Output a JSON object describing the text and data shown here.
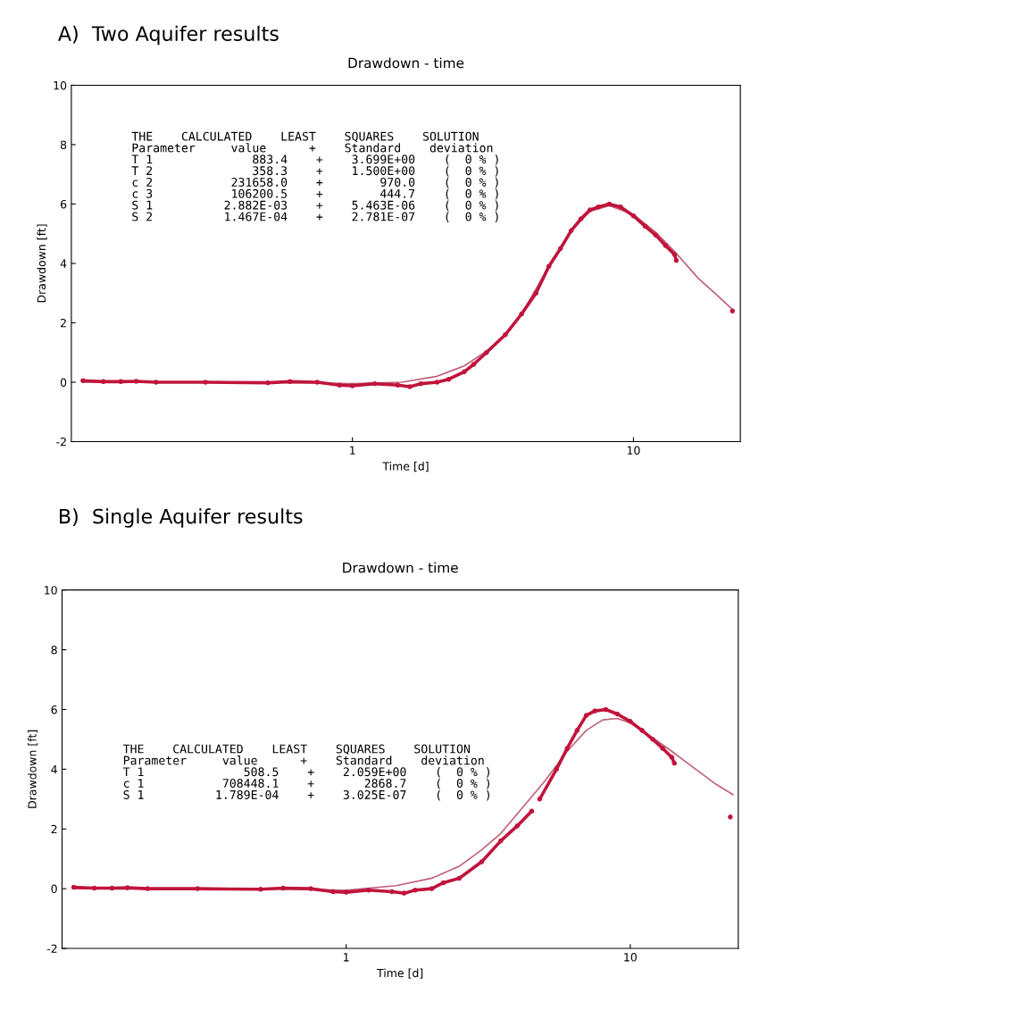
{
  "chart_data": [
    {
      "type": "line",
      "title": "A)  Two Aquifer results",
      "subtitle": "Drawdown - time",
      "xlabel": "Time [d]",
      "ylabel": "Drawdown [ft]",
      "log": "x",
      "grid": false,
      "xlim": [
        0.1,
        24
      ],
      "xticks": [
        1,
        10
      ],
      "ylim": [
        -2,
        10
      ],
      "yticks": [
        -2,
        0,
        2,
        4,
        6,
        8,
        10
      ],
      "annotations": [
        "THE    CALCULATED    LEAST    SQUARES    SOLUTION\nParameter     value      +    Standard    deviation\nT 1              883.4    +    3.699E+00    (  0 % )\nT 2              358.3    +    1.500E+00    (  0 % )\nc 2           231658.0    +        970.0    (  0 % )\nc 3           106200.5    +        444.7    (  0 % )\nS 1          2.882E-03    +    5.463E-06    (  0 % )\nS 2          1.467E-04    +    2.781E-07    (  0 % )"
      ],
      "series": [
        {
          "color": "#c0607a",
          "line_style": "solid",
          "marker": "none",
          "x": [
            0.11,
            0.5,
            1.0,
            1.5,
            2.0,
            2.5,
            3.0,
            3.5,
            4.0,
            5.0,
            6.0,
            7.0,
            8.2,
            10,
            12,
            14,
            17,
            20,
            22.5
          ],
          "values": [
            0,
            0,
            -0.05,
            0.0,
            0.2,
            0.55,
            1.05,
            1.6,
            2.3,
            3.9,
            5.1,
            5.75,
            5.95,
            5.65,
            5.05,
            4.4,
            3.5,
            2.9,
            2.45
          ]
        },
        {
          "color": "#c0143c",
          "line_style": "solid",
          "marker": "circle",
          "x": [
            0.11,
            0.13,
            0.15,
            0.17,
            0.2,
            0.3,
            0.5,
            0.6,
            0.75,
            0.9,
            1.0,
            1.2,
            1.45,
            1.6,
            1.75,
            2.0,
            2.2,
            2.5,
            2.7,
            3.0,
            3.5,
            4.0,
            4.5,
            5.0,
            5.5,
            6.0,
            6.5,
            7.0,
            7.5,
            8.2,
            9.0,
            10,
            11,
            12,
            13,
            14,
            14.2,
            18,
            22.5
          ],
          "values": [
            0.05,
            0.02,
            0.02,
            0.03,
            0.0,
            0.0,
            -0.02,
            0.02,
            0.0,
            -0.1,
            -0.12,
            -0.05,
            -0.1,
            -0.15,
            -0.05,
            0.0,
            0.1,
            0.35,
            0.6,
            1.0,
            1.6,
            2.3,
            3.0,
            3.9,
            4.5,
            5.1,
            5.5,
            5.8,
            5.9,
            6.0,
            5.9,
            5.6,
            5.25,
            4.95,
            4.6,
            4.3,
            4.1,
            null,
            2.4
          ]
        }
      ]
    },
    {
      "type": "line",
      "title": "B)  Single Aquifer results",
      "subtitle": "Drawdown - time",
      "xlabel": "Time [d]",
      "ylabel": "Drawdown [ft]",
      "log": "x",
      "grid": false,
      "xlim": [
        0.1,
        24
      ],
      "xticks": [
        1,
        10
      ],
      "ylim": [
        -2,
        10
      ],
      "yticks": [
        -2,
        0,
        2,
        4,
        6,
        8,
        10
      ],
      "annotations": [
        "THE    CALCULATED    LEAST    SQUARES    SOLUTION\nParameter     value      +    Standard    deviation\nT 1              508.5    +    2.059E+00    (  0 % )\nc 1           708448.1    +       2868.7    (  0 % )\nS 1          1.789E-04    +    3.025E-07    (  0 % )"
      ],
      "series": [
        {
          "color": "#c0607a",
          "line_style": "solid",
          "marker": "none",
          "x": [
            0.11,
            0.5,
            1.0,
            1.5,
            2.0,
            2.5,
            3.0,
            3.5,
            4.0,
            5.0,
            6.0,
            7.0,
            8.0,
            9.0,
            10,
            12,
            14,
            17,
            20,
            23
          ],
          "values": [
            0,
            0,
            -0.05,
            0.1,
            0.35,
            0.75,
            1.3,
            1.85,
            2.5,
            3.6,
            4.6,
            5.3,
            5.65,
            5.7,
            5.55,
            5.05,
            4.6,
            4.0,
            3.5,
            3.15
          ]
        },
        {
          "color": "#c0143c",
          "line_style": "solid",
          "marker": "circle",
          "x": [
            0.11,
            0.13,
            0.15,
            0.17,
            0.2,
            0.3,
            0.5,
            0.6,
            0.75,
            0.9,
            1.0,
            1.2,
            1.45,
            1.6,
            1.75,
            2.0,
            2.2,
            2.5,
            3.0,
            3.5,
            4.0,
            4.5,
            4.65,
            4.8,
            5.5,
            6.0,
            6.5,
            7.0,
            7.5,
            8.2,
            9.0,
            10,
            11,
            12,
            13,
            14,
            14.3,
            18,
            22.5
          ],
          "values": [
            0.05,
            0.02,
            0.02,
            0.03,
            0.0,
            0.0,
            -0.02,
            0.02,
            0.0,
            -0.1,
            -0.12,
            -0.05,
            -0.1,
            -0.15,
            -0.05,
            0.0,
            0.2,
            0.35,
            0.9,
            1.6,
            2.1,
            2.6,
            null,
            3.0,
            4.0,
            4.7,
            5.3,
            5.8,
            5.95,
            6.0,
            5.85,
            5.6,
            5.3,
            5.0,
            4.7,
            4.4,
            4.2,
            null,
            2.4
          ]
        }
      ]
    }
  ]
}
